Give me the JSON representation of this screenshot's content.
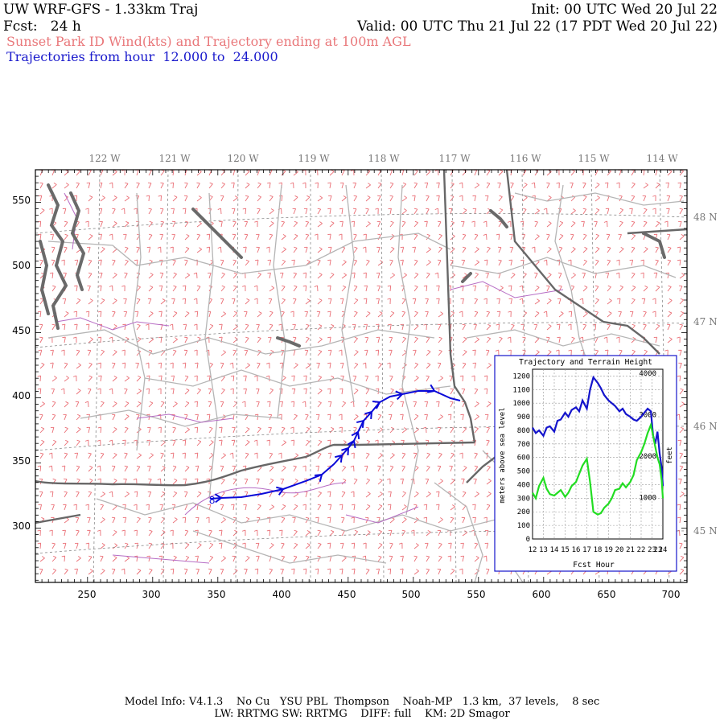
{
  "header": {
    "title": "UW WRF-GFS - 1.33km Traj",
    "init": "Init: 00 UTC Wed 20 Jul 22",
    "fcst": "Fcst:   24 h",
    "valid": "Valid: 00 UTC Thu 21 Jul 22 (17 PDT Wed 20 Jul 22)",
    "subtitle": "Sunset Park ID Wind(kts) and Trajectory ending at 100m AGL",
    "range": "Trajectories from hour  12.000 to  24.000"
  },
  "map": {
    "lon_labels": [
      "122 W",
      "121 W",
      "120 W",
      "119 W",
      "118 W",
      "117 W",
      "116 W",
      "115 W",
      "114 W"
    ],
    "lat_labels": [
      "48 N",
      "47 N",
      "46 N",
      "45 N"
    ],
    "y_ticks": [
      "550",
      "500",
      "450",
      "400",
      "350",
      "300"
    ],
    "x_ticks": [
      "250",
      "300",
      "350",
      "400",
      "450",
      "500",
      "550",
      "600",
      "650",
      "700"
    ],
    "start_marker": "8",
    "colors": {
      "barbs": "#ea6e75",
      "trajectory": "#0a0ad8",
      "counties": "#bcbcbc",
      "states": "#6b6b6b",
      "rivers": "#b066c0"
    }
  },
  "inset": {
    "title": "Trajectory and Terrain Height",
    "ylabel_left": "meters above sea level",
    "ylabel_right": "feet",
    "xlabel": "Fcst Hour",
    "left_ticks": [
      "1200",
      "1100",
      "1000",
      "900",
      "800",
      "700",
      "600",
      "500",
      "400",
      "300",
      "200",
      "100",
      "0"
    ],
    "right_ticks": [
      "4000",
      "3000",
      "2000",
      "1000"
    ],
    "x_ticks": [
      "12",
      "13",
      "14",
      "15",
      "16",
      "17",
      "18",
      "19",
      "20",
      "21",
      "22",
      "23",
      "23",
      "24"
    ]
  },
  "chart_data": {
    "type": "line",
    "title": "Trajectory and Terrain Height",
    "xlabel": "Fcst Hour",
    "ylabel": "meters above sea level",
    "xlim": [
      12,
      24
    ],
    "ylim": [
      0,
      1250
    ],
    "series": [
      {
        "color": "#1414cc",
        "x": [
          12,
          12.3,
          12.6,
          13,
          13.3,
          13.6,
          14,
          14.3,
          14.6,
          15,
          15.3,
          15.6,
          16,
          16.3,
          16.6,
          17,
          17.3,
          17.6,
          18,
          18.3,
          18.6,
          19,
          19.3,
          19.6,
          20,
          20.3,
          20.6,
          21,
          21.3,
          21.6,
          22,
          22.3,
          22.6,
          22.9,
          23.1,
          23.3,
          23.5,
          23.7,
          23.9,
          24
        ],
        "y": [
          820,
          780,
          800,
          760,
          820,
          830,
          790,
          870,
          880,
          930,
          900,
          950,
          970,
          940,
          1020,
          960,
          1100,
          1190,
          1150,
          1110,
          1060,
          1020,
          1000,
          980,
          940,
          960,
          920,
          900,
          880,
          870,
          900,
          930,
          960,
          940,
          760,
          700,
          790,
          630,
          520,
          390
        ]
      },
      {
        "color": "#22dd22",
        "x": [
          12,
          12.3,
          12.6,
          13,
          13.3,
          13.6,
          14,
          14.3,
          14.6,
          15,
          15.3,
          15.6,
          16,
          16.3,
          16.6,
          17,
          17.3,
          17.6,
          18,
          18.3,
          18.6,
          19,
          19.3,
          19.6,
          20,
          20.3,
          20.6,
          21,
          21.3,
          21.6,
          22,
          22.3,
          22.6,
          22.9,
          23.1,
          23.3,
          23.5,
          23.7,
          23.9,
          24
        ],
        "y": [
          340,
          300,
          390,
          450,
          370,
          330,
          320,
          340,
          360,
          310,
          340,
          390,
          420,
          480,
          540,
          590,
          420,
          200,
          180,
          190,
          230,
          260,
          300,
          360,
          370,
          410,
          380,
          420,
          470,
          580,
          640,
          700,
          780,
          840,
          760,
          680,
          600,
          550,
          430,
          300
        ]
      }
    ]
  },
  "footer": {
    "line1": "Model Info: V4.1.3    No Cu   YSU PBL  Thompson    Noah-MP   1.3 km,  37 levels,    8 sec",
    "line2": "LW: RRTMG SW: RRTMG    DIFF: full    KM: 2D Smagor"
  }
}
